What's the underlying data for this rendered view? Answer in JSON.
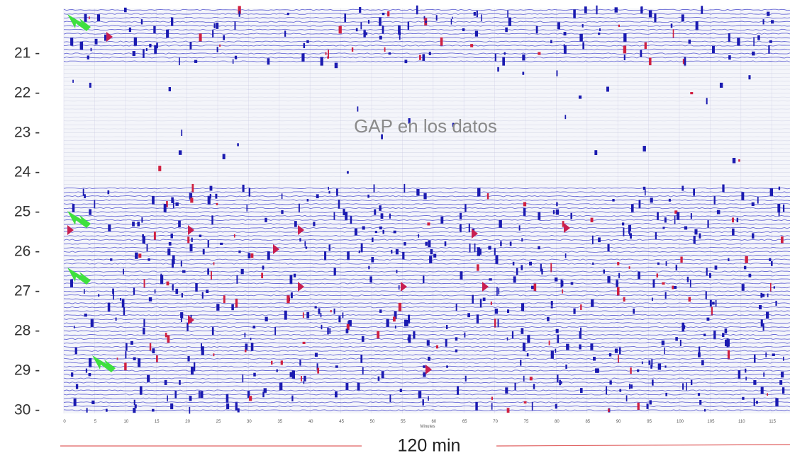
{
  "y_labels": [
    "21 -",
    "22 -",
    "23 -",
    "24 -",
    "25 -",
    "26 -",
    "27 -",
    "28 -",
    "29 -",
    "30 -"
  ],
  "annotation": "GAP en los datos",
  "x_ticks": [
    "0",
    "5",
    "10",
    "15",
    "20",
    "25",
    "30",
    "35",
    "40",
    "45",
    "50",
    "55",
    "60",
    "65",
    "70",
    "75",
    "80",
    "85",
    "90",
    "95",
    "100",
    "105",
    "110",
    "115"
  ],
  "x_axis_label": "Minutes",
  "span_label": "120 min"
}
